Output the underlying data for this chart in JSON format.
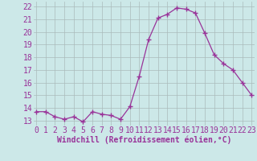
{
  "x": [
    0,
    1,
    2,
    3,
    4,
    5,
    6,
    7,
    8,
    9,
    10,
    11,
    12,
    13,
    14,
    15,
    16,
    17,
    18,
    19,
    20,
    21,
    22,
    23
  ],
  "y": [
    13.7,
    13.7,
    13.3,
    13.1,
    13.3,
    12.9,
    13.7,
    13.5,
    13.4,
    13.1,
    14.1,
    16.5,
    19.4,
    21.1,
    21.4,
    21.9,
    21.8,
    21.5,
    19.9,
    18.2,
    17.5,
    17.0,
    16.0,
    15.0
  ],
  "line_color": "#993399",
  "marker": "+",
  "marker_size": 4,
  "xlabel": "Windchill (Refroidissement éolien,°C)",
  "ylabel_ticks": [
    13,
    14,
    15,
    16,
    17,
    18,
    19,
    20,
    21,
    22
  ],
  "xticks": [
    0,
    1,
    2,
    3,
    4,
    5,
    6,
    7,
    8,
    9,
    10,
    11,
    12,
    13,
    14,
    15,
    16,
    17,
    18,
    19,
    20,
    21,
    22,
    23
  ],
  "xlim": [
    -0.3,
    23.3
  ],
  "ylim": [
    12.6,
    22.4
  ],
  "bg_color": "#cce8e8",
  "grid_color": "#aabbbb",
  "tick_label_color": "#993399",
  "xlabel_color": "#993399",
  "xlabel_fontsize": 7,
  "tick_fontsize": 7
}
